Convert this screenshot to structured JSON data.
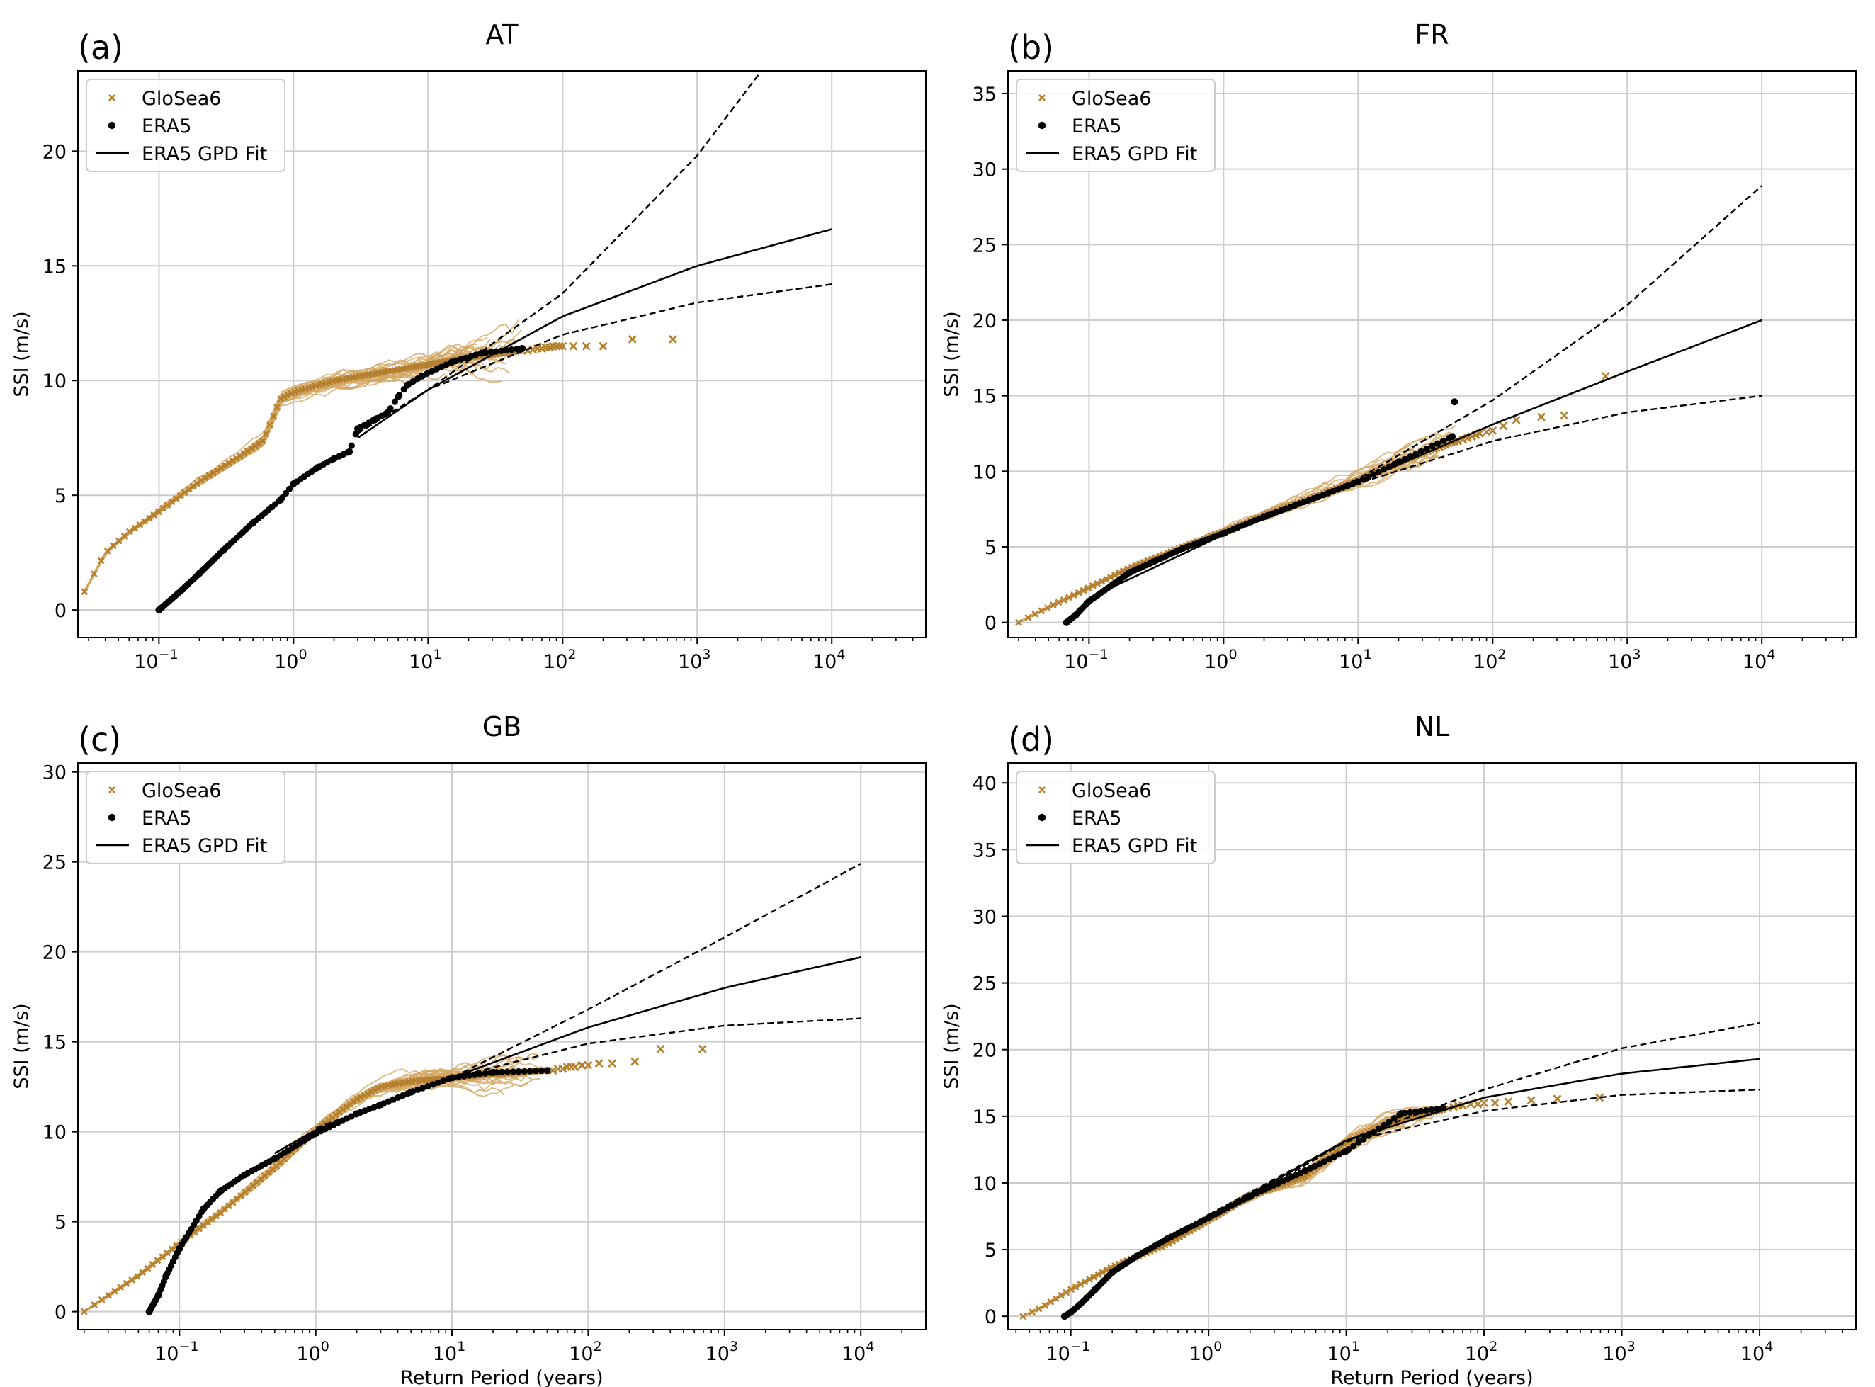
{
  "figure": {
    "x_axis_label": "Return Period (years)",
    "y_axis_label": "SSI (m/s)",
    "colors": {
      "glosea": "#b5802e",
      "glosea_thin": "#d3a662",
      "era5": "#000000",
      "grid": "#cccccc"
    }
  },
  "chart_data": [
    {
      "type": "line",
      "panel_label": "(a)",
      "title": "AT",
      "xlabel": "",
      "ylabel": "SSI (m/s)",
      "xscale": "log",
      "xlim": [
        0.025,
        50000
      ],
      "ylim": [
        -1.2,
        23.5
      ],
      "yticks": [
        0,
        5,
        10,
        15,
        20
      ],
      "xtick_exponents": [
        -1,
        0,
        1,
        2,
        3,
        4
      ],
      "legend": [
        "GloSea6",
        "ERA5",
        "ERA5 GPD Fit"
      ],
      "legend_position": "upper-left",
      "glosea_ensemble": {
        "x": [
          0.028,
          0.04,
          0.06,
          0.1,
          0.2,
          0.4,
          0.6,
          0.8,
          1,
          2,
          5,
          10,
          20,
          50
        ],
        "y": [
          0.8,
          2.5,
          3.4,
          4.3,
          5.6,
          6.7,
          7.4,
          9.2,
          9.5,
          10.0,
          10.4,
          10.7,
          11.0,
          11.3
        ]
      },
      "glosea_extreme": {
        "x": [
          55,
          60,
          65,
          70,
          75,
          80,
          85,
          90,
          95,
          100,
          120,
          150,
          200,
          330,
          660
        ],
        "y": [
          11.3,
          11.35,
          11.4,
          11.4,
          11.45,
          11.45,
          11.5,
          11.5,
          11.5,
          11.5,
          11.5,
          11.5,
          11.5,
          11.8,
          11.8
        ]
      },
      "era5": {
        "x": [
          0.1,
          0.15,
          0.2,
          0.3,
          0.5,
          0.8,
          1,
          1.5,
          2,
          2.6,
          3,
          4,
          5,
          6,
          7,
          9,
          15,
          25,
          50
        ],
        "y": [
          0.0,
          0.9,
          1.6,
          2.6,
          3.8,
          4.8,
          5.5,
          6.2,
          6.6,
          6.9,
          7.9,
          8.3,
          8.6,
          9.3,
          9.8,
          10.2,
          10.8,
          11.2,
          11.4
        ]
      },
      "gpd_fit": {
        "x": [
          3,
          10,
          100,
          1000,
          10000
        ],
        "y": [
          7.5,
          9.6,
          12.8,
          15.0,
          16.6
        ]
      },
      "gpd_upper": {
        "x": [
          3,
          10,
          100,
          1000,
          3000
        ],
        "y": [
          7.7,
          9.6,
          13.8,
          19.8,
          23.5
        ]
      },
      "gpd_lower": {
        "x": [
          3,
          10,
          100,
          1000,
          10000
        ],
        "y": [
          7.7,
          9.6,
          12.0,
          13.4,
          14.2
        ]
      }
    },
    {
      "type": "line",
      "panel_label": "(b)",
      "title": "FR",
      "xlabel": "",
      "ylabel": "SSI (m/s)",
      "xscale": "log",
      "xlim": [
        0.025,
        50000
      ],
      "ylim": [
        -1.0,
        36.5
      ],
      "yticks": [
        0,
        5,
        10,
        15,
        20,
        25,
        30,
        35
      ],
      "xtick_exponents": [
        -1,
        0,
        1,
        2,
        3,
        4
      ],
      "legend": [
        "GloSea6",
        "ERA5",
        "ERA5 GPD Fit"
      ],
      "legend_position": "upper-left",
      "glosea_ensemble": {
        "x": [
          0.03,
          0.05,
          0.1,
          0.2,
          0.5,
          1,
          2,
          5,
          10,
          20,
          55
        ],
        "y": [
          0.0,
          1.0,
          2.3,
          3.6,
          5.0,
          6.0,
          7.1,
          8.4,
          9.4,
          10.6,
          12.0
        ]
      },
      "glosea_extreme": {
        "x": [
          55,
          60,
          65,
          70,
          75,
          80,
          90,
          100,
          120,
          150,
          230,
          340,
          690
        ],
        "y": [
          12.0,
          12.1,
          12.2,
          12.3,
          12.4,
          12.5,
          12.6,
          12.7,
          13.0,
          13.4,
          13.6,
          13.7,
          16.3
        ]
      },
      "era5": {
        "x": [
          0.068,
          0.08,
          0.1,
          0.15,
          0.2,
          0.3,
          0.5,
          1,
          2,
          5,
          10,
          20,
          50,
          52
        ],
        "y": [
          0.0,
          0.5,
          1.4,
          2.5,
          3.3,
          4.0,
          4.9,
          5.9,
          7.0,
          8.3,
          9.3,
          10.6,
          12.3,
          14.6
        ]
      },
      "gpd_fit": {
        "x": [
          0.1,
          1,
          10,
          100,
          1000,
          10000
        ],
        "y": [
          1.6,
          5.8,
          9.3,
          13.1,
          16.6,
          20.0
        ]
      },
      "gpd_upper": {
        "x": [
          1,
          10,
          100,
          1000,
          10000
        ],
        "y": [
          5.8,
          9.5,
          14.7,
          21.0,
          28.9
        ]
      },
      "gpd_lower": {
        "x": [
          1,
          10,
          100,
          1000,
          10000
        ],
        "y": [
          5.8,
          9.2,
          12.0,
          13.9,
          15.0
        ]
      }
    },
    {
      "type": "line",
      "panel_label": "(c)",
      "title": "GB",
      "xlabel": "Return Period (years)",
      "ylabel": "SSI (m/s)",
      "xscale": "log",
      "xlim": [
        0.018,
        30000
      ],
      "ylim": [
        -1.0,
        30.5
      ],
      "yticks": [
        0,
        5,
        10,
        15,
        20,
        25,
        30
      ],
      "xtick_exponents": [
        -1,
        0,
        1,
        2,
        3,
        4
      ],
      "legend": [
        "GloSea6",
        "ERA5",
        "ERA5 GPD Fit"
      ],
      "legend_position": "upper-left",
      "glosea_ensemble": {
        "x": [
          0.02,
          0.03,
          0.05,
          0.1,
          0.2,
          0.5,
          1,
          2,
          3,
          5,
          10,
          20,
          50
        ],
        "y": [
          0.0,
          0.9,
          2.0,
          3.8,
          5.5,
          8.0,
          10.1,
          11.8,
          12.5,
          12.8,
          13.0,
          13.2,
          13.4
        ]
      },
      "glosea_extreme": {
        "x": [
          55,
          60,
          65,
          70,
          75,
          80,
          90,
          100,
          120,
          150,
          220,
          340,
          690
        ],
        "y": [
          13.4,
          13.5,
          13.5,
          13.6,
          13.6,
          13.6,
          13.7,
          13.7,
          13.8,
          13.8,
          13.9,
          14.6,
          14.6
        ]
      },
      "era5": {
        "x": [
          0.06,
          0.07,
          0.08,
          0.1,
          0.15,
          0.2,
          0.3,
          0.5,
          1,
          2,
          3,
          5,
          10,
          20,
          50
        ],
        "y": [
          0.0,
          0.9,
          2.0,
          3.5,
          5.7,
          6.7,
          7.6,
          8.5,
          9.9,
          11.0,
          11.5,
          12.2,
          13.0,
          13.3,
          13.4
        ]
      },
      "gpd_fit": {
        "x": [
          0.5,
          1,
          10,
          100,
          1000,
          10000
        ],
        "y": [
          8.8,
          10.1,
          13.0,
          15.8,
          18.0,
          19.7
        ]
      },
      "gpd_upper": {
        "x": [
          1,
          10,
          100,
          1000,
          10000
        ],
        "y": [
          10.0,
          13.0,
          16.8,
          20.8,
          24.9
        ]
      },
      "gpd_lower": {
        "x": [
          1,
          10,
          100,
          1000,
          10000
        ],
        "y": [
          10.2,
          13.0,
          14.9,
          15.9,
          16.3
        ]
      }
    },
    {
      "type": "line",
      "panel_label": "(d)",
      "title": "NL",
      "xlabel": "Return Period (years)",
      "ylabel": "SSI (m/s)",
      "xscale": "log",
      "xlim": [
        0.035,
        50000
      ],
      "ylim": [
        -1.0,
        41.5
      ],
      "yticks": [
        0,
        5,
        10,
        15,
        20,
        25,
        30,
        35,
        40
      ],
      "xtick_exponents": [
        -1,
        0,
        1,
        2,
        3,
        4
      ],
      "legend": [
        "GloSea6",
        "ERA5",
        "ERA5 GPD Fit"
      ],
      "legend_position": "upper-left",
      "glosea_ensemble": {
        "x": [
          0.045,
          0.06,
          0.1,
          0.2,
          0.5,
          1,
          2,
          5,
          10,
          20,
          50
        ],
        "y": [
          0.0,
          0.6,
          2.0,
          3.7,
          5.4,
          7.2,
          9.0,
          10.5,
          13.0,
          14.5,
          15.5
        ]
      },
      "glosea_extreme": {
        "x": [
          55,
          60,
          65,
          70,
          80,
          90,
          100,
          120,
          150,
          220,
          340,
          690
        ],
        "y": [
          15.6,
          15.7,
          15.8,
          15.8,
          15.9,
          15.9,
          16.0,
          16.0,
          16.1,
          16.2,
          16.3,
          16.4
        ]
      },
      "era5": {
        "x": [
          0.09,
          0.1,
          0.12,
          0.15,
          0.2,
          0.3,
          0.5,
          1,
          2,
          5,
          10,
          25,
          50
        ],
        "y": [
          0.0,
          0.3,
          1.0,
          2.0,
          3.3,
          4.5,
          5.8,
          7.4,
          9.0,
          10.9,
          12.4,
          15.2,
          15.6
        ]
      },
      "gpd_fit": {
        "x": [
          0.5,
          1,
          10,
          100,
          1000,
          10000
        ],
        "y": [
          5.8,
          7.4,
          13.2,
          16.4,
          18.2,
          19.3
        ]
      },
      "gpd_upper": {
        "x": [
          1,
          10,
          100,
          1000,
          10000
        ],
        "y": [
          7.6,
          13.2,
          17.0,
          20.1,
          22.0
        ]
      },
      "gpd_lower": {
        "x": [
          1,
          10,
          100,
          1000,
          10000
        ],
        "y": [
          7.2,
          13.1,
          15.4,
          16.6,
          17.0
        ]
      }
    }
  ]
}
